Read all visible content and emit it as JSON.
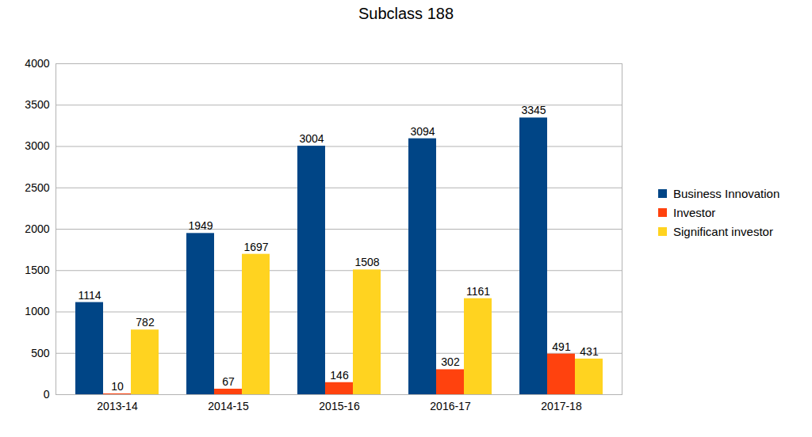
{
  "chart_data": {
    "type": "bar",
    "title": "Subclass 188",
    "categories": [
      "2013-14",
      "2014-15",
      "2015-16",
      "2016-17",
      "2017-18"
    ],
    "series": [
      {
        "name": "Business Innovation",
        "color": "#004586",
        "values": [
          1114,
          1949,
          3004,
          3094,
          3345
        ]
      },
      {
        "name": "Investor",
        "color": "#ff420e",
        "values": [
          10,
          67,
          146,
          302,
          491
        ]
      },
      {
        "name": "Significant investor",
        "color": "#ffd320",
        "values": [
          782,
          1697,
          1508,
          1161,
          431
        ]
      }
    ],
    "ylim": [
      0,
      4000
    ],
    "yticks": [
      0,
      500,
      1000,
      1500,
      2000,
      2500,
      3000,
      3500,
      4000
    ],
    "grid": true,
    "data_labels": true,
    "legend": "right"
  }
}
